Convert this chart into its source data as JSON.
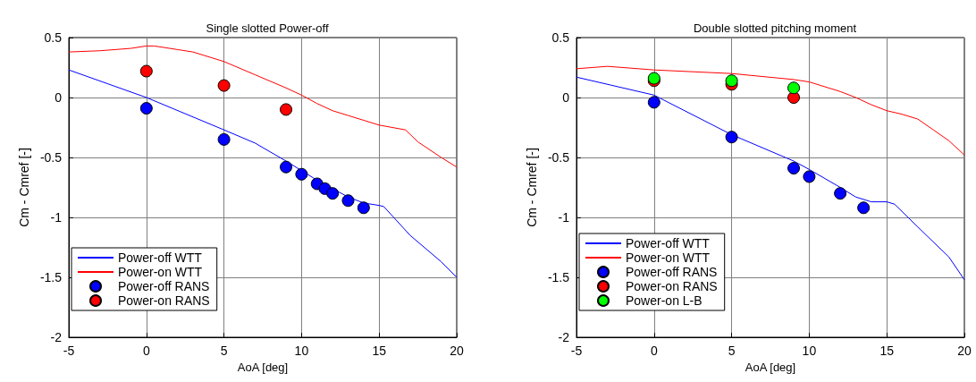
{
  "chart_data": [
    {
      "type": "line",
      "title": "Single slotted Power-off",
      "xlabel": "AoA [deg]",
      "ylabel": "Cm - Cmref [-]",
      "xlim": [
        -5,
        20
      ],
      "xticks": [
        -5,
        0,
        5,
        10,
        15,
        20
      ],
      "ylim": [
        -2,
        0.5
      ],
      "yticks": [
        -2,
        -1.5,
        -1,
        -0.5,
        0,
        0.5
      ],
      "grid": true,
      "legend": "bottom left",
      "series": [
        {
          "name": "Power-off WTT",
          "marker": "none",
          "color": "#0000ff",
          "x": [
            -5,
            0,
            5,
            7,
            9,
            10,
            11,
            12,
            13,
            14,
            15,
            15.3,
            17,
            19,
            20
          ],
          "values": [
            0.23,
            0.0,
            -0.27,
            -0.38,
            -0.53,
            -0.61,
            -0.69,
            -0.76,
            -0.83,
            -0.88,
            -0.9,
            -0.91,
            -1.15,
            -1.37,
            -1.5
          ]
        },
        {
          "name": "Power-on WTT",
          "marker": "none",
          "color": "#ff0000",
          "x": [
            -5,
            -3,
            -1,
            0,
            0.5,
            2,
            3,
            5,
            7,
            9,
            10,
            11,
            12,
            13,
            14,
            15,
            16.7,
            17.5,
            19,
            20
          ],
          "values": [
            0.38,
            0.39,
            0.41,
            0.43,
            0.43,
            0.4,
            0.38,
            0.3,
            0.19,
            0.08,
            0.02,
            -0.05,
            -0.11,
            -0.15,
            -0.19,
            -0.23,
            -0.27,
            -0.37,
            -0.5,
            -0.58
          ]
        },
        {
          "name": "Power-off RANS",
          "type": "scatter",
          "marker": "circle",
          "color": "#0000ff",
          "x": [
            0,
            5,
            9,
            10,
            11,
            11.5,
            12,
            13,
            14
          ],
          "values": [
            -0.09,
            -0.35,
            -0.58,
            -0.64,
            -0.72,
            -0.76,
            -0.8,
            -0.86,
            -0.92
          ]
        },
        {
          "name": "Power-on RANS",
          "type": "scatter",
          "marker": "circle",
          "color": "#ff0000",
          "x": [
            0,
            5,
            9
          ],
          "values": [
            0.22,
            0.1,
            -0.1
          ]
        }
      ]
    },
    {
      "type": "line",
      "title": "Double slotted pitching moment",
      "xlabel": "AoA [deg]",
      "ylabel": "Cm - Cmref [-]",
      "xlim": [
        -5,
        20
      ],
      "xticks": [
        -5,
        0,
        5,
        10,
        15,
        20
      ],
      "ylim": [
        -2,
        0.5
      ],
      "yticks": [
        -2,
        -1.5,
        -1,
        -0.5,
        0,
        0.5
      ],
      "grid": true,
      "legend": "bottom left",
      "series": [
        {
          "name": "Power-off WTT",
          "marker": "none",
          "color": "#0000ff",
          "x": [
            -5,
            0,
            5,
            9,
            10,
            12,
            13,
            14,
            15,
            15.5,
            17,
            19,
            20
          ],
          "values": [
            0.17,
            0.02,
            -0.31,
            -0.53,
            -0.6,
            -0.75,
            -0.83,
            -0.87,
            -0.87,
            -0.89,
            -1.08,
            -1.33,
            -1.52
          ]
        },
        {
          "name": "Power-on WTT",
          "marker": "none",
          "color": "#ff0000",
          "x": [
            -5,
            -3,
            0,
            5,
            9,
            10,
            12,
            13,
            14,
            15,
            16,
            17,
            18,
            19,
            20
          ],
          "values": [
            0.24,
            0.26,
            0.23,
            0.2,
            0.15,
            0.13,
            0.05,
            0.0,
            -0.06,
            -0.11,
            -0.14,
            -0.18,
            -0.27,
            -0.36,
            -0.48
          ]
        },
        {
          "name": "Power-off RANS",
          "type": "scatter",
          "marker": "circle",
          "color": "#0000ff",
          "x": [
            0,
            5,
            9,
            10,
            12,
            13.5
          ],
          "values": [
            -0.04,
            -0.33,
            -0.59,
            -0.66,
            -0.8,
            -0.92
          ]
        },
        {
          "name": "Power-on RANS",
          "type": "scatter",
          "marker": "circle",
          "color": "#ff0000",
          "x": [
            0,
            5,
            9
          ],
          "values": [
            0.14,
            0.11,
            0.0
          ]
        },
        {
          "name": "Power-on L-B",
          "type": "scatter",
          "marker": "circle",
          "color": "#00ff00",
          "x": [
            0,
            5,
            9
          ],
          "values": [
            0.16,
            0.14,
            0.08
          ]
        }
      ]
    }
  ]
}
